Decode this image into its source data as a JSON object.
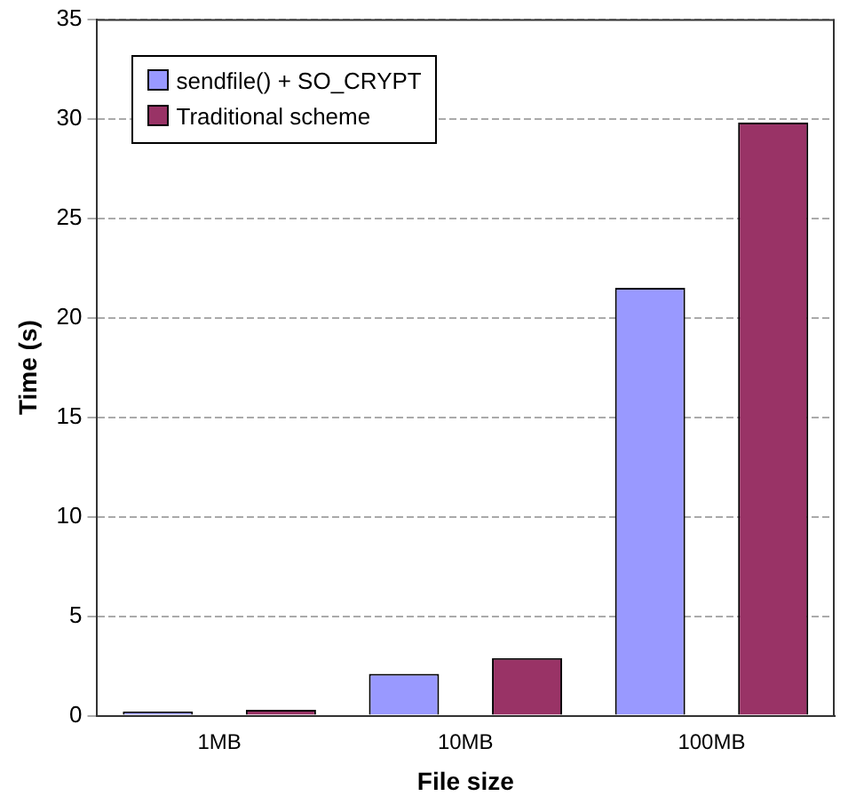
{
  "chart_data": {
    "type": "bar",
    "xlabel": "File size",
    "ylabel": "Time (s)",
    "categories": [
      "1MB",
      "10MB",
      "100MB"
    ],
    "series": [
      {
        "name": "sendfile() + SO_CRYPT",
        "color": "#9999ff",
        "values": [
          0.2,
          2.1,
          21.5
        ]
      },
      {
        "name": "Traditional scheme",
        "color": "#993366",
        "values": [
          0.3,
          2.9,
          29.8
        ]
      }
    ],
    "ylim": [
      0,
      35
    ],
    "yticks": [
      0,
      5,
      10,
      15,
      20,
      25,
      30,
      35
    ],
    "grid": "y",
    "legend": "top left"
  }
}
